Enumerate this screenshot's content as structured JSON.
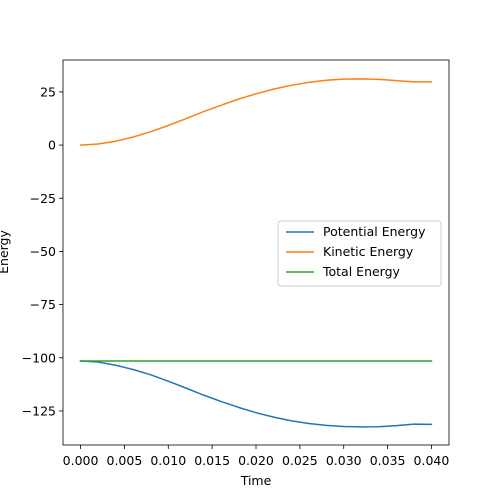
{
  "chart_data": {
    "type": "line",
    "title": "",
    "xlabel": "Time",
    "ylabel": "Energy",
    "xlim": [
      -0.002,
      0.042
    ],
    "ylim": [
      -141,
      40
    ],
    "xticks": [
      0.0,
      0.005,
      0.01,
      0.015,
      0.02,
      0.025,
      0.03,
      0.035,
      0.04
    ],
    "xtick_labels": [
      "0.000",
      "0.005",
      "0.010",
      "0.015",
      "0.020",
      "0.025",
      "0.030",
      "0.035",
      "0.040"
    ],
    "yticks": [
      -125,
      -100,
      -75,
      -50,
      -25,
      0,
      25
    ],
    "ytick_labels": [
      "−125",
      "−100",
      "−75",
      "−50",
      "−25",
      "0",
      "25"
    ],
    "grid": false,
    "legend_position": "center-right",
    "series": [
      {
        "name": "Potential Energy",
        "color": "#1f77b4",
        "x": [
          0.0,
          0.002,
          0.004,
          0.006,
          0.008,
          0.01,
          0.012,
          0.014,
          0.016,
          0.018,
          0.02,
          0.022,
          0.024,
          0.026,
          0.028,
          0.03,
          0.032,
          0.034,
          0.036,
          0.038,
          0.04
        ],
        "y": [
          -101.5,
          -102,
          -103.5,
          -105.5,
          -108,
          -111,
          -114.2,
          -117.5,
          -120.5,
          -123.3,
          -125.8,
          -127.9,
          -129.6,
          -130.9,
          -131.8,
          -132.3,
          -132.5,
          -132.4,
          -131.9,
          -131.2,
          -131.3
        ]
      },
      {
        "name": "Kinetic Energy",
        "color": "#ff7f0e",
        "x": [
          0.0,
          0.002,
          0.004,
          0.006,
          0.008,
          0.01,
          0.012,
          0.014,
          0.016,
          0.018,
          0.02,
          0.022,
          0.024,
          0.026,
          0.028,
          0.03,
          0.032,
          0.034,
          0.036,
          0.038,
          0.04
        ],
        "y": [
          0,
          0.5,
          1.8,
          3.8,
          6.3,
          9.2,
          12.4,
          15.7,
          18.7,
          21.6,
          24.1,
          26.3,
          28.1,
          29.5,
          30.5,
          31.0,
          31.1,
          30.9,
          30.3,
          29.7,
          29.7
        ]
      },
      {
        "name": "Total Energy",
        "color": "#2ca02c",
        "x": [
          0.0,
          0.04
        ],
        "y": [
          -101.5,
          -101.5
        ]
      }
    ]
  }
}
